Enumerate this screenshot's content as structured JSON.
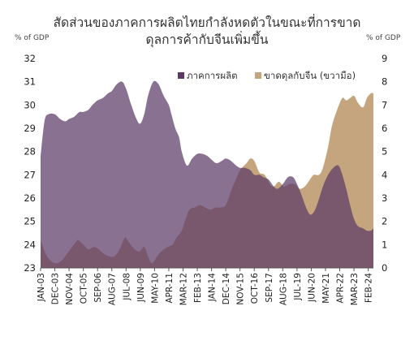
{
  "chart_data": {
    "type": "area",
    "title_lines": [
      "สัดส่วนของภาคการผลิตไทยกำลังหดตัวในขณะที่การขาด",
      "ดุลการค้ากับจีนเพิ่มขึ้น"
    ],
    "y_left_unit": "% of GDP",
    "y_right_unit": "% of GDP",
    "y_left": {
      "min": 23,
      "max": 32,
      "ticks": [
        23,
        24,
        25,
        26,
        27,
        28,
        29,
        30,
        31,
        32
      ]
    },
    "y_right": {
      "min": 0,
      "max": 9,
      "ticks": [
        0,
        1,
        2,
        3,
        4,
        5,
        6,
        7,
        8,
        9
      ]
    },
    "x_labels": [
      "JAN-03",
      "DEC-03",
      "NOV-04",
      "OCT-05",
      "SEP-06",
      "AUG-07",
      "JUL-08",
      "JUN-09",
      "MAY-10",
      "APR-11",
      "MAR-12",
      "FEB-13",
      "JAN-14",
      "DEC-14",
      "NOV-15",
      "OCT-16",
      "SEP-17",
      "AUG-18",
      "JUL-19",
      "JUN-20",
      "MAY-21",
      "APR-22",
      "MAR-23",
      "FEB-24"
    ],
    "x_range": [
      "JAN-03",
      "JUN-24"
    ],
    "legend_position": "top-right",
    "series": [
      {
        "name": "ภาคการผลิต",
        "axis": "left",
        "color": "#5b3a66",
        "points": [
          [
            "2003-01",
            27.8
          ],
          [
            "2003-04",
            29.3
          ],
          [
            "2003-07",
            29.6
          ],
          [
            "2003-12",
            29.6
          ],
          [
            "2004-04",
            29.4
          ],
          [
            "2004-08",
            29.3
          ],
          [
            "2004-11",
            29.4
          ],
          [
            "2005-03",
            29.5
          ],
          [
            "2005-07",
            29.7
          ],
          [
            "2005-10",
            29.7
          ],
          [
            "2006-02",
            29.8
          ],
          [
            "2006-05",
            30.0
          ],
          [
            "2006-09",
            30.2
          ],
          [
            "2007-01",
            30.3
          ],
          [
            "2007-05",
            30.5
          ],
          [
            "2007-08",
            30.6
          ],
          [
            "2007-12",
            30.9
          ],
          [
            "2008-04",
            31.0
          ],
          [
            "2008-07",
            30.7
          ],
          [
            "2008-11",
            30.0
          ],
          [
            "2009-03",
            29.4
          ],
          [
            "2009-06",
            29.2
          ],
          [
            "2009-09",
            29.6
          ],
          [
            "2009-12",
            30.4
          ],
          [
            "2010-04",
            31.0
          ],
          [
            "2010-08",
            30.9
          ],
          [
            "2010-12",
            30.4
          ],
          [
            "2011-04",
            30.0
          ],
          [
            "2011-06",
            29.6
          ],
          [
            "2011-09",
            29.0
          ],
          [
            "2011-12",
            28.6
          ],
          [
            "2012-02",
            28.0
          ],
          [
            "2012-06",
            27.4
          ],
          [
            "2012-10",
            27.7
          ],
          [
            "2013-02",
            27.9
          ],
          [
            "2013-06",
            27.9
          ],
          [
            "2013-10",
            27.8
          ],
          [
            "2014-02",
            27.6
          ],
          [
            "2014-05",
            27.5
          ],
          [
            "2014-09",
            27.6
          ],
          [
            "2014-12",
            27.7
          ],
          [
            "2015-04",
            27.6
          ],
          [
            "2015-08",
            27.4
          ],
          [
            "2015-11",
            27.3
          ],
          [
            "2016-03",
            27.3
          ],
          [
            "2016-07",
            27.2
          ],
          [
            "2016-10",
            27.0
          ],
          [
            "2017-02",
            27.0
          ],
          [
            "2017-05",
            26.9
          ],
          [
            "2017-09",
            26.8
          ],
          [
            "2018-01",
            26.5
          ],
          [
            "2018-04",
            26.4
          ],
          [
            "2018-08",
            26.6
          ],
          [
            "2018-12",
            26.9
          ],
          [
            "2019-04",
            26.9
          ],
          [
            "2019-07",
            26.6
          ],
          [
            "2019-10",
            26.2
          ],
          [
            "2020-02",
            25.6
          ],
          [
            "2020-05",
            25.3
          ],
          [
            "2020-08",
            25.4
          ],
          [
            "2020-11",
            25.8
          ],
          [
            "2021-03",
            26.5
          ],
          [
            "2021-07",
            27.0
          ],
          [
            "2021-11",
            27.3
          ],
          [
            "2022-03",
            27.4
          ],
          [
            "2022-06",
            27.0
          ],
          [
            "2022-09",
            26.4
          ],
          [
            "2022-12",
            25.7
          ],
          [
            "2023-03",
            25.1
          ],
          [
            "2023-06",
            24.8
          ],
          [
            "2023-10",
            24.7
          ],
          [
            "2024-01",
            24.6
          ],
          [
            "2024-04",
            24.6
          ],
          [
            "2024-06",
            24.7
          ]
        ]
      },
      {
        "name": "ขาดดุลกับจีน (ขวามือ)",
        "axis": "right",
        "color": "#c4a57e",
        "points": [
          [
            "2003-01",
            1.2
          ],
          [
            "2003-05",
            0.6
          ],
          [
            "2003-09",
            0.3
          ],
          [
            "2004-01",
            0.2
          ],
          [
            "2004-05",
            0.3
          ],
          [
            "2004-08",
            0.5
          ],
          [
            "2004-12",
            0.8
          ],
          [
            "2005-04",
            1.1
          ],
          [
            "2005-06",
            1.2
          ],
          [
            "2005-10",
            1.0
          ],
          [
            "2006-02",
            0.8
          ],
          [
            "2006-06",
            0.9
          ],
          [
            "2006-10",
            0.8
          ],
          [
            "2007-02",
            0.6
          ],
          [
            "2007-06",
            0.5
          ],
          [
            "2007-10",
            0.5
          ],
          [
            "2008-02",
            0.8
          ],
          [
            "2008-06",
            1.3
          ],
          [
            "2008-08",
            1.2
          ],
          [
            "2008-12",
            0.9
          ],
          [
            "2009-05",
            0.7
          ],
          [
            "2009-09",
            0.9
          ],
          [
            "2009-12",
            0.5
          ],
          [
            "2010-03",
            0.2
          ],
          [
            "2010-07",
            0.5
          ],
          [
            "2010-10",
            0.7
          ],
          [
            "2011-03",
            0.9
          ],
          [
            "2011-07",
            1.0
          ],
          [
            "2011-10",
            1.3
          ],
          [
            "2012-02",
            1.6
          ],
          [
            "2012-05",
            2.1
          ],
          [
            "2012-08",
            2.5
          ],
          [
            "2012-12",
            2.6
          ],
          [
            "2013-04",
            2.7
          ],
          [
            "2013-08",
            2.6
          ],
          [
            "2013-12",
            2.5
          ],
          [
            "2014-04",
            2.6
          ],
          [
            "2014-08",
            2.6
          ],
          [
            "2014-12",
            2.7
          ],
          [
            "2015-04",
            3.3
          ],
          [
            "2015-07",
            3.7
          ],
          [
            "2015-11",
            4.2
          ],
          [
            "2016-04",
            4.5
          ],
          [
            "2016-07",
            4.7
          ],
          [
            "2016-10",
            4.6
          ],
          [
            "2017-02",
            4.1
          ],
          [
            "2017-06",
            4.0
          ],
          [
            "2017-10",
            3.6
          ],
          [
            "2018-01",
            3.5
          ],
          [
            "2018-05",
            3.7
          ],
          [
            "2018-09",
            3.5
          ],
          [
            "2019-01",
            3.6
          ],
          [
            "2019-05",
            3.6
          ],
          [
            "2019-09",
            3.4
          ],
          [
            "2020-01",
            3.5
          ],
          [
            "2020-05",
            3.8
          ],
          [
            "2020-08",
            4.0
          ],
          [
            "2020-12",
            4.0
          ],
          [
            "2021-03",
            4.3
          ],
          [
            "2021-07",
            5.2
          ],
          [
            "2021-10",
            6.1
          ],
          [
            "2022-02",
            6.8
          ],
          [
            "2022-06",
            7.3
          ],
          [
            "2022-09",
            7.2
          ],
          [
            "2022-12",
            7.3
          ],
          [
            "2023-03",
            7.4
          ],
          [
            "2023-06",
            7.1
          ],
          [
            "2023-10",
            6.9
          ],
          [
            "2024-01",
            7.3
          ],
          [
            "2024-04",
            7.5
          ],
          [
            "2024-06",
            7.5
          ]
        ]
      }
    ]
  }
}
